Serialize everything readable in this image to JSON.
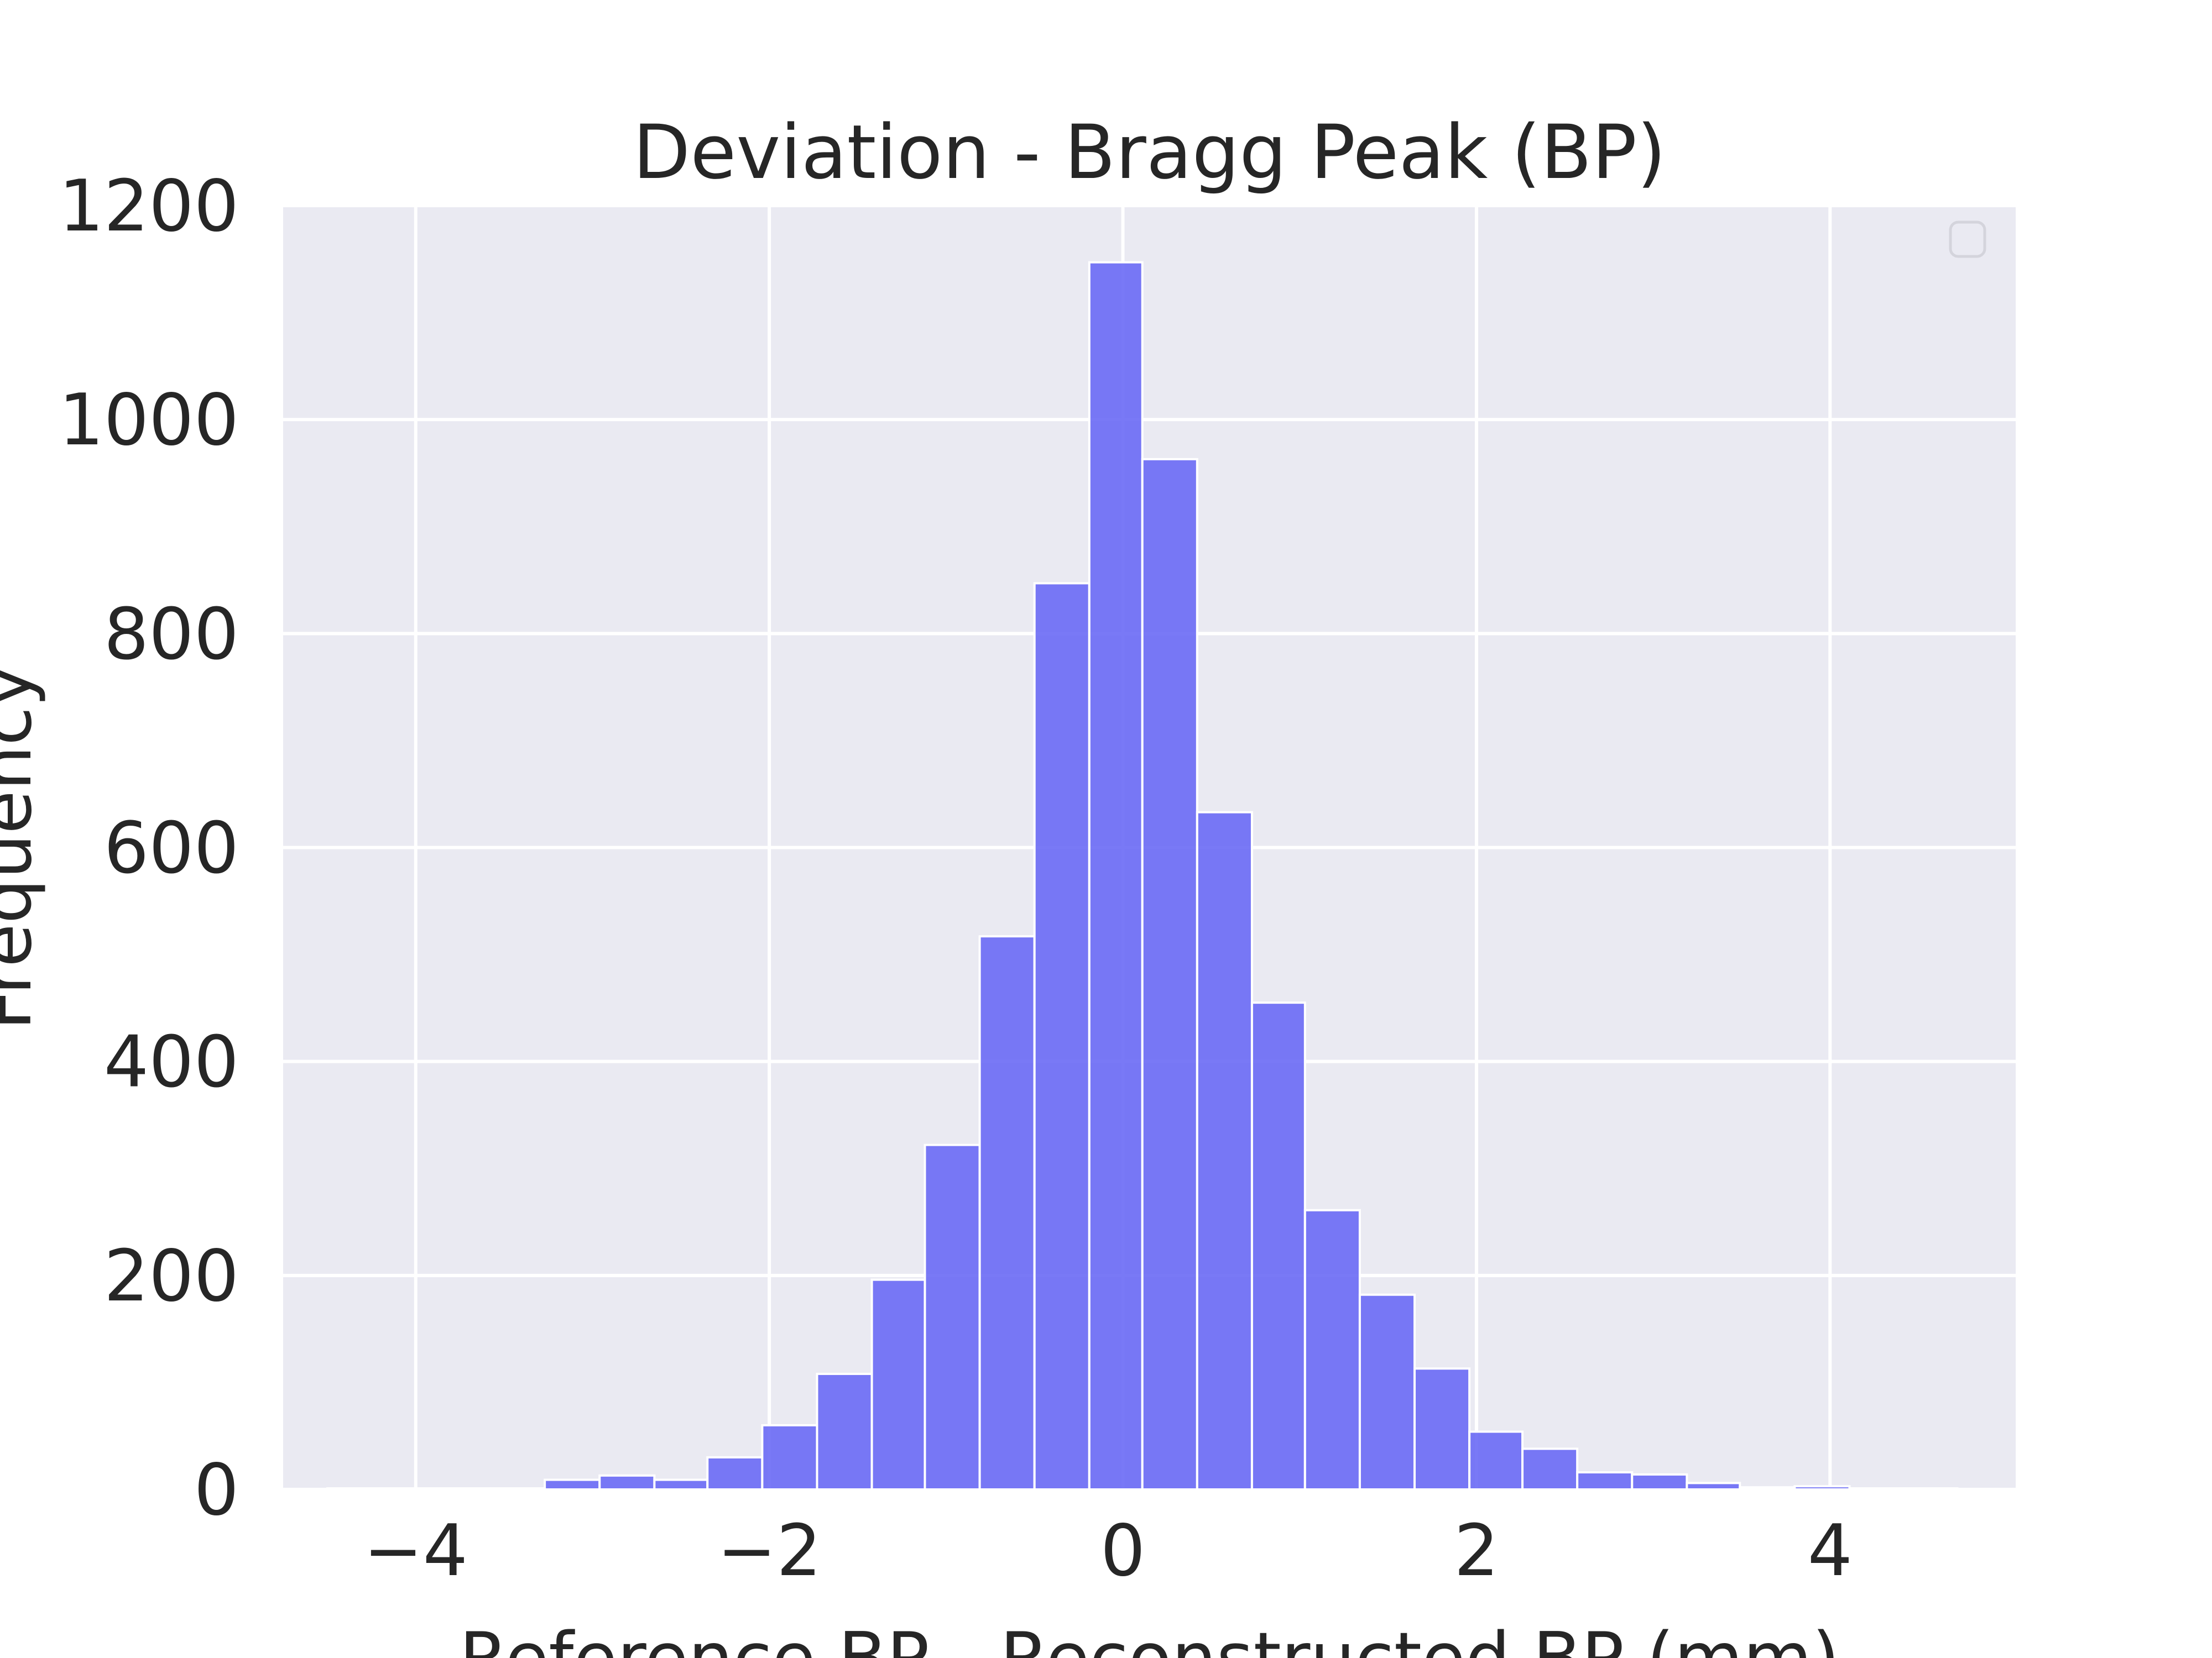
{
  "chart_data": {
    "type": "bar",
    "title": "Deviation - Bragg Peak (BP)",
    "xlabel": "Reference BP - Reconstructed BP (mm)",
    "ylabel": "Frequency",
    "xlim": [
      -4.75,
      5.05
    ],
    "ylim": [
      0,
      1200
    ],
    "xticks": [
      -4,
      -2,
      0,
      2,
      4
    ],
    "xtick_labels": [
      "−4",
      "−2",
      "0",
      "2",
      "4"
    ],
    "yticks": [
      0,
      200,
      400,
      600,
      800,
      1000,
      1200
    ],
    "ytick_labels": [
      "0",
      "200",
      "400",
      "600",
      "800",
      "1000",
      "1200"
    ],
    "grid": true,
    "legend": "top-right (empty)",
    "bar_color": "#6666f5",
    "background": "#eaeaf2",
    "bin_edges": [
      -4.5,
      -4.19,
      -3.88,
      -3.58,
      -3.27,
      -2.96,
      -2.65,
      -2.35,
      -2.04,
      -1.73,
      -1.42,
      -1.12,
      -0.81,
      -0.5,
      -0.19,
      0.11,
      0.42,
      0.73,
      1.03,
      1.34,
      1.65,
      1.96,
      2.26,
      2.57,
      2.88,
      3.19,
      3.49,
      3.8,
      4.11,
      4.42,
      4.72
    ],
    "values": [
      1,
      1,
      1,
      1,
      9,
      13,
      9,
      30,
      60,
      108,
      196,
      322,
      517,
      847,
      1147,
      963,
      633,
      455,
      261,
      182,
      113,
      54,
      38,
      16,
      14,
      6,
      2,
      3,
      1,
      1
    ]
  }
}
